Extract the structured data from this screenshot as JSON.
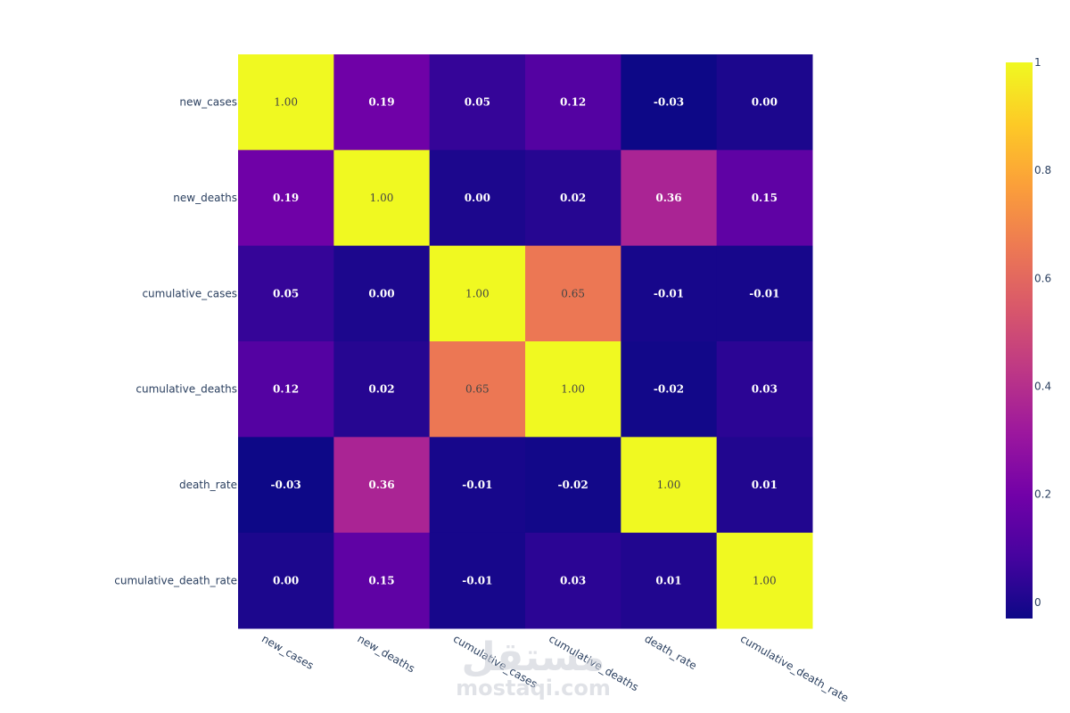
{
  "chart_data": {
    "type": "heatmap",
    "x": [
      "new_cases",
      "new_deaths",
      "cumulative_cases",
      "cumulative_deaths",
      "death_rate",
      "cumulative_death_rate"
    ],
    "y": [
      "new_cases",
      "new_deaths",
      "cumulative_cases",
      "cumulative_deaths",
      "death_rate",
      "cumulative_death_rate"
    ],
    "z": [
      [
        1.0,
        0.19,
        0.05,
        0.12,
        -0.03,
        0.0
      ],
      [
        0.19,
        1.0,
        0.0,
        0.02,
        0.36,
        0.15
      ],
      [
        0.05,
        0.0,
        1.0,
        0.65,
        -0.01,
        -0.01
      ],
      [
        0.12,
        0.02,
        0.65,
        1.0,
        -0.02,
        0.03
      ],
      [
        -0.03,
        0.36,
        -0.01,
        -0.02,
        1.0,
        0.01
      ],
      [
        0.0,
        0.15,
        -0.01,
        0.03,
        0.01,
        1.0
      ]
    ],
    "text": [
      [
        "1.00",
        "0.19",
        "0.05",
        "0.12",
        "-0.03",
        "0.00"
      ],
      [
        "0.19",
        "1.00",
        "0.00",
        "0.02",
        "0.36",
        "0.15"
      ],
      [
        "0.05",
        "0.00",
        "1.00",
        "0.65",
        "-0.01",
        "-0.01"
      ],
      [
        "0.12",
        "0.02",
        "0.65",
        "1.00",
        "-0.02",
        "0.03"
      ],
      [
        "-0.03",
        "0.36",
        "-0.01",
        "-0.02",
        "1.00",
        "0.01"
      ],
      [
        "0.00",
        "0.15",
        "-0.01",
        "0.03",
        "0.01",
        "1.00"
      ]
    ],
    "zrange": [
      -0.03,
      1
    ],
    "colorscale": "plasma",
    "colorbar": {
      "ticks": [
        0,
        0.2,
        0.4,
        0.6,
        0.8,
        1
      ],
      "tick_labels": [
        "0",
        "0.2",
        "0.4",
        "0.6",
        "0.8",
        "1"
      ]
    },
    "title": "",
    "xlabel": "",
    "ylabel": ""
  },
  "watermark": {
    "arabic": "مستقل",
    "latin": "mostaqi.com"
  }
}
